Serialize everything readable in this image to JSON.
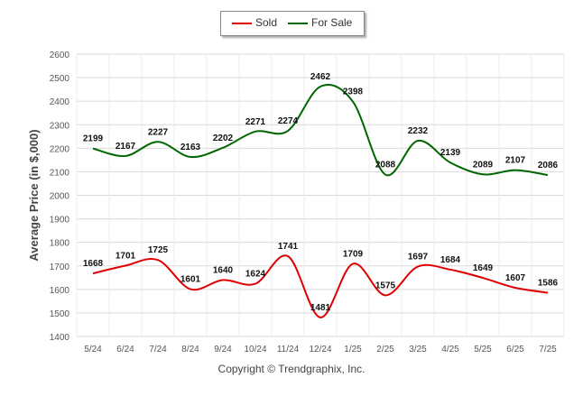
{
  "chart_data": {
    "type": "line",
    "categories": [
      "5/24",
      "6/24",
      "7/24",
      "8/24",
      "9/24",
      "10/24",
      "11/24",
      "12/24",
      "1/25",
      "2/25",
      "3/25",
      "4/25",
      "5/25",
      "6/25",
      "7/25"
    ],
    "series": [
      {
        "name": "Sold",
        "color": "#e00000",
        "values": [
          1668,
          1701,
          1725,
          1601,
          1640,
          1624,
          1741,
          1481,
          1709,
          1575,
          1697,
          1684,
          1649,
          1607,
          1586
        ]
      },
      {
        "name": "For Sale",
        "color": "#006600",
        "values": [
          2199,
          2167,
          2227,
          2163,
          2202,
          2271,
          2274,
          2462,
          2398,
          2088,
          2232,
          2139,
          2089,
          2107,
          2086
        ]
      }
    ],
    "ylabel": "Average Price (in $,000)",
    "xlabel": "",
    "ylim": [
      1400,
      2600
    ],
    "yticks": [
      1400,
      1500,
      1600,
      1700,
      1800,
      1900,
      2000,
      2100,
      2200,
      2300,
      2400,
      2500,
      2600
    ],
    "grid": true,
    "legend_position": "top-center"
  },
  "legend": {
    "sold": "Sold",
    "for_sale": "For Sale"
  },
  "footer": {
    "copyright": "Copyright © Trendgraphix, Inc."
  }
}
